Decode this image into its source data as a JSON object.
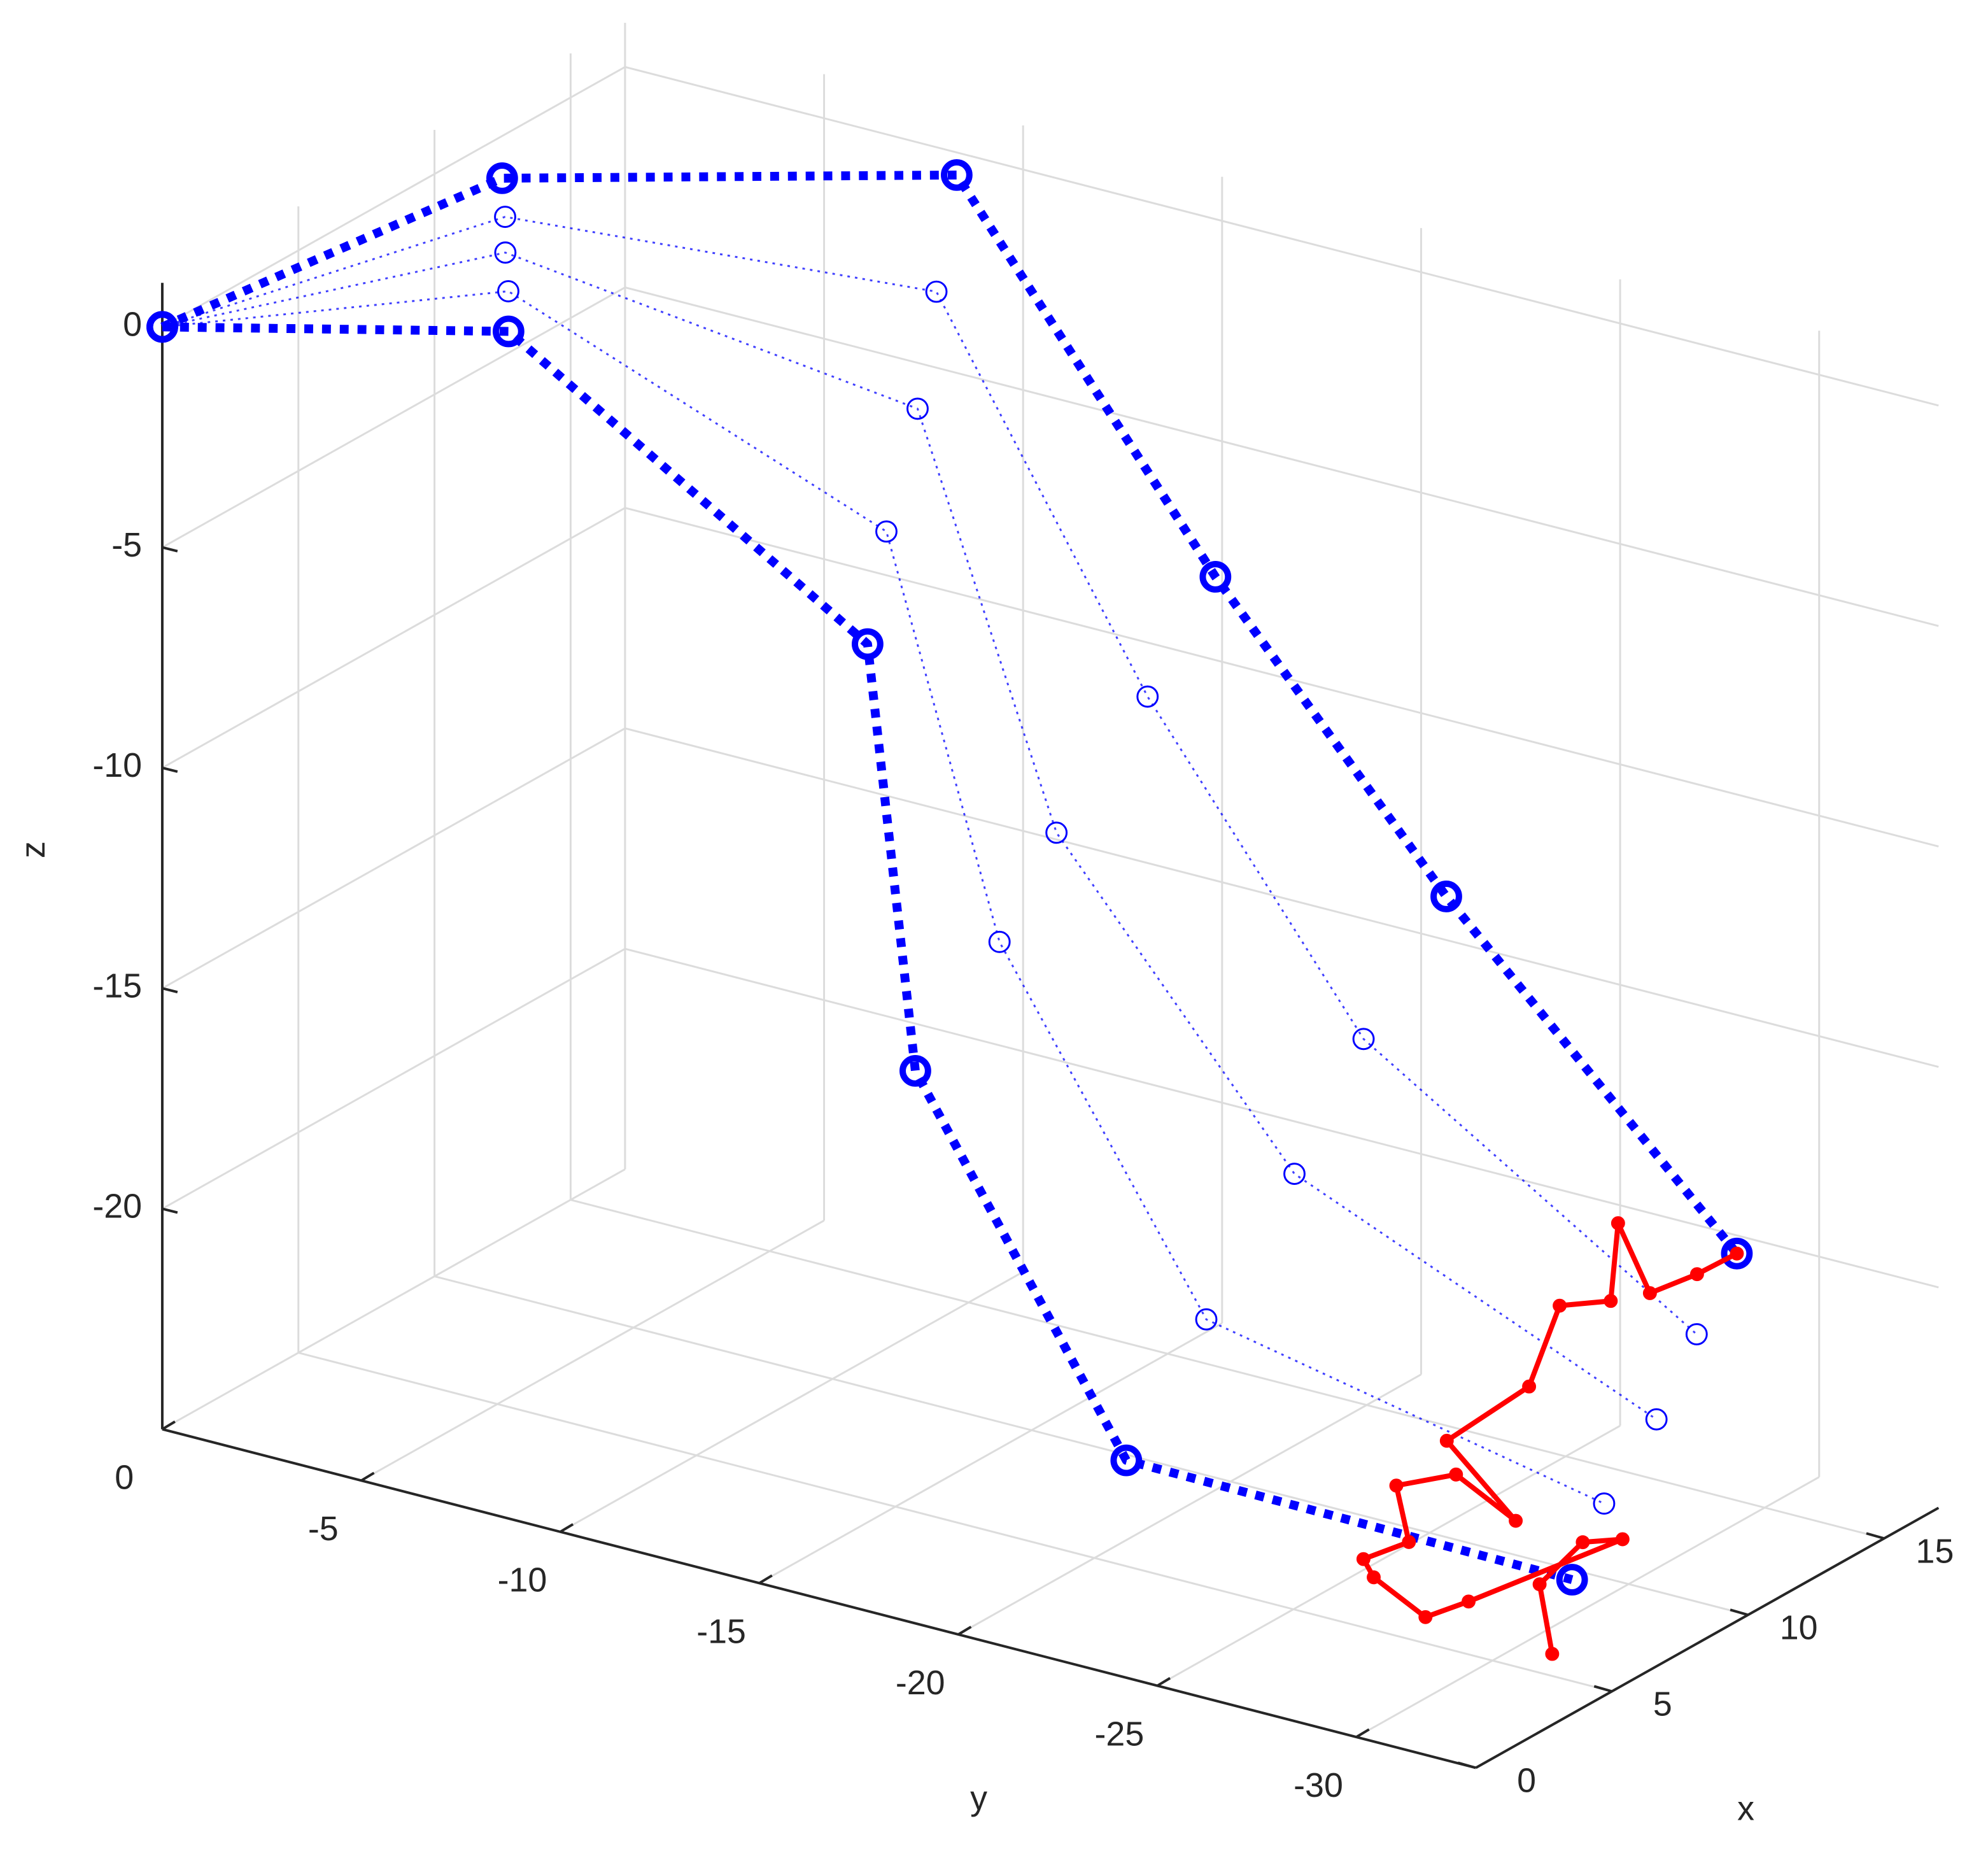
{
  "chart_data": {
    "type": "line3d",
    "xlabel": "x",
    "ylabel": "y",
    "zlabel": "z",
    "xlim": [
      0,
      17
    ],
    "ylim": [
      -33,
      0
    ],
    "zlim": [
      -25,
      1
    ],
    "xticks": [
      0,
      5,
      10,
      15
    ],
    "yticks": [
      -30,
      -25,
      -20,
      -15,
      -10,
      -5,
      0
    ],
    "zticks": [
      -20,
      -15,
      -10,
      -5,
      0
    ],
    "grid": true,
    "series": [
      {
        "color": "#0000ff",
        "line": "dotted",
        "width": 7,
        "marker": "o",
        "marker_size": 10,
        "x": [
          0,
          3.8,
          5,
          5,
          5,
          5
        ],
        "y": [
          0,
          -6.1,
          -14.3,
          -15.5,
          -20.8,
          -32
        ],
        "z": [
          0,
          0,
          -5.6,
          -15,
          -22.6,
          -22.7
        ]
      },
      {
        "color": "#0000ff",
        "line": "dotted",
        "width": 1.5,
        "marker": "o",
        "marker_size": 8,
        "x": [
          0,
          5.4,
          7.3,
          7.8,
          7.5,
          7.2
        ],
        "y": [
          0,
          -5,
          -13.2,
          -15.7,
          -21.1,
          -31.3
        ],
        "z": [
          0,
          0.1,
          -4.1,
          -13,
          -20.2,
          -21.9
        ]
      },
      {
        "color": "#0000ff",
        "line": "dotted",
        "width": 1.5,
        "marker": "o",
        "marker_size": 8,
        "x": [
          0,
          6.9,
          10.2,
          9.6,
          10.3,
          10
        ],
        "y": [
          0,
          -3.9,
          -12,
          -15.9,
          -21.4,
          -30.7
        ],
        "z": [
          0,
          0.2,
          -2.6,
          -11.1,
          -17.8,
          -21.1
        ]
      },
      {
        "color": "#0000ff",
        "line": "dotted",
        "width": 1.5,
        "marker": "o",
        "marker_size": 8,
        "x": [
          0,
          8.5,
          12.5,
          12.8,
          12.4,
          12.5
        ],
        "y": [
          0,
          -2.8,
          -10.9,
          -16,
          -21.7,
          -30
        ],
        "z": [
          0,
          0.2,
          -1,
          -9.1,
          -15.4,
          -20.2
        ]
      },
      {
        "color": "#0000ff",
        "line": "dotted",
        "width": 7,
        "marker": "o",
        "marker_size": 10,
        "x": [
          0,
          10,
          15,
          15,
          15,
          15
        ],
        "y": [
          0,
          -1.7,
          -9.7,
          -16.2,
          -22,
          -29.3
        ],
        "z": [
          0,
          0.3,
          0.5,
          -7.1,
          -13,
          -19.4
        ]
      },
      {
        "color": "#ff0000",
        "line": "solid",
        "width": 4,
        "marker": ".",
        "marker_size": 3,
        "x": [
          5,
          6,
          7,
          7,
          5,
          4,
          4,
          4.5,
          5,
          6,
          6,
          6,
          8,
          10,
          12,
          13,
          14,
          14,
          15,
          15
        ],
        "y": [
          -31.5,
          -30.5,
          -30.9,
          -31.9,
          -29.4,
          -29,
          -27.7,
          -27.1,
          -27.9,
          -26.9,
          -28.4,
          -29.9,
          -26.8,
          -27.5,
          -26.9,
          -27.5,
          -27,
          -27.8,
          -28.3,
          -29.3
        ],
        "z": [
          -24.5,
          -23.5,
          -22.8,
          -22.5,
          -23.8,
          -23.9,
          -23.3,
          -23.2,
          -22.8,
          -22.1,
          -21.5,
          -22.2,
          -21.8,
          -21.1,
          -20.1,
          -20.2,
          -18.9,
          -20.3,
          -20.1,
          -19.4
        ]
      }
    ]
  }
}
